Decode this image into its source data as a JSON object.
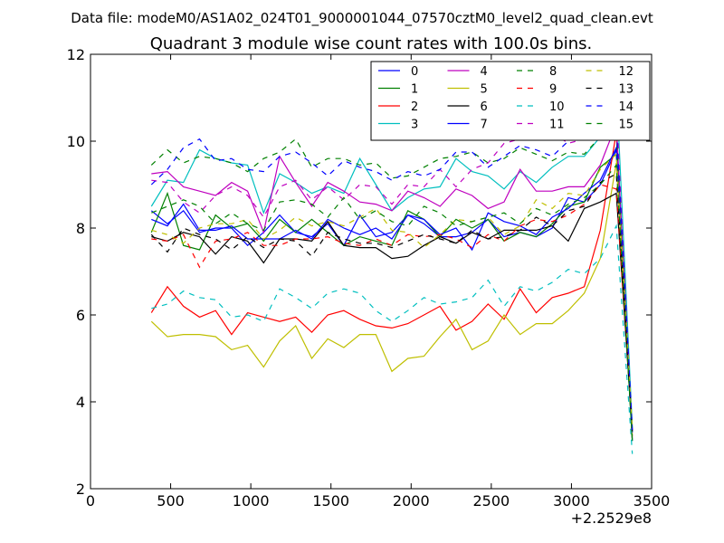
{
  "figure": {
    "suptitle": "Data file: modeM0/AS1A02_024T01_9000001044_07570cztM0_level2_quad_clean.evt",
    "offset_label": "+2.2529e8"
  },
  "chart_data": {
    "type": "line",
    "title": "Quadrant 3 module wise count rates with 100.0s bins.",
    "xlabel": "",
    "ylabel": "",
    "xlim": [
      0,
      3500
    ],
    "ylim": [
      2,
      12
    ],
    "x_offset": 225290000,
    "xticks": [
      0,
      500,
      1000,
      1500,
      2000,
      2500,
      3000,
      3500
    ],
    "yticks": [
      2,
      4,
      6,
      8,
      10,
      12
    ],
    "grid": false,
    "legend_position": "top-right",
    "legend_columns": 4,
    "x": [
      380,
      480,
      580,
      680,
      780,
      880,
      980,
      1080,
      1180,
      1280,
      1380,
      1480,
      1580,
      1680,
      1780,
      1880,
      1980,
      2080,
      2180,
      2280,
      2380,
      2480,
      2580,
      2680,
      2780,
      2880,
      2980,
      3080,
      3180,
      3280,
      3380
    ],
    "series": [
      {
        "name": "0",
        "color": "#0000ff",
        "dash": "solid",
        "values": [
          8.4,
          8.1,
          8.4,
          7.9,
          8.0,
          8.0,
          7.6,
          7.9,
          8.3,
          7.9,
          7.8,
          8.1,
          7.6,
          8.3,
          7.8,
          7.9,
          8.3,
          8.1,
          7.8,
          7.8,
          7.9,
          8.2,
          7.8,
          7.9,
          7.8,
          8.0,
          8.7,
          8.6,
          9.0,
          9.8,
          3.1
        ]
      },
      {
        "name": "1",
        "color": "#008000",
        "dash": "solid",
        "values": [
          7.9,
          8.8,
          7.6,
          7.5,
          8.3,
          8.0,
          8.1,
          7.7,
          8.2,
          7.9,
          8.2,
          7.9,
          7.6,
          7.8,
          7.7,
          7.6,
          8.4,
          8.2,
          7.8,
          8.2,
          8.0,
          8.2,
          7.7,
          7.9,
          7.8,
          8.1,
          8.5,
          8.6,
          9.4,
          9.7,
          3.1
        ]
      },
      {
        "name": "2",
        "color": "#ff0000",
        "dash": "solid",
        "values": [
          6.05,
          6.65,
          6.2,
          5.95,
          6.1,
          5.55,
          6.05,
          5.95,
          5.85,
          5.95,
          5.6,
          6.0,
          6.1,
          5.9,
          5.75,
          5.7,
          5.8,
          6.0,
          6.2,
          5.65,
          5.85,
          6.25,
          5.9,
          6.6,
          6.05,
          6.4,
          6.5,
          6.65,
          7.95,
          10.2,
          3.35
        ]
      },
      {
        "name": "3",
        "color": "#00bfbf",
        "dash": "solid",
        "values": [
          8.5,
          9.1,
          9.05,
          9.8,
          9.6,
          9.5,
          9.45,
          8.35,
          9.25,
          9.05,
          8.8,
          8.95,
          8.8,
          9.6,
          9.0,
          8.4,
          8.7,
          8.9,
          8.95,
          9.6,
          9.3,
          9.2,
          8.9,
          9.3,
          9.05,
          9.4,
          9.65,
          9.65,
          10.1,
          11.3,
          3.4
        ]
      },
      {
        "name": "4",
        "color": "#bf00bf",
        "dash": "solid",
        "values": [
          9.25,
          9.3,
          8.95,
          8.85,
          8.75,
          9.05,
          8.85,
          7.9,
          9.65,
          9.05,
          8.5,
          9.05,
          8.85,
          8.6,
          8.55,
          8.4,
          8.85,
          8.7,
          8.5,
          8.9,
          8.75,
          8.45,
          8.6,
          9.35,
          8.85,
          8.85,
          8.95,
          8.95,
          9.45,
          10.4,
          3.2
        ]
      },
      {
        "name": "5",
        "color": "#bfbf00",
        "dash": "solid",
        "values": [
          5.85,
          5.5,
          5.55,
          5.55,
          5.5,
          5.2,
          5.3,
          4.8,
          5.4,
          5.75,
          5.0,
          5.45,
          5.25,
          5.55,
          5.55,
          4.7,
          5.0,
          5.05,
          5.5,
          5.9,
          5.2,
          5.4,
          6.0,
          5.55,
          5.8,
          5.8,
          6.1,
          6.5,
          7.3,
          9.5,
          3.2
        ]
      },
      {
        "name": "6",
        "color": "#000000",
        "dash": "solid",
        "values": [
          7.8,
          7.7,
          7.9,
          7.8,
          7.4,
          7.8,
          7.7,
          7.2,
          7.75,
          7.75,
          7.7,
          8.15,
          7.6,
          7.55,
          7.55,
          7.3,
          7.35,
          7.6,
          7.8,
          7.65,
          7.9,
          7.75,
          7.95,
          7.95,
          7.95,
          8.05,
          7.7,
          8.45,
          8.6,
          8.8,
          3.3
        ]
      },
      {
        "name": "7",
        "color": "#0000ff",
        "dash": "solid",
        "values": [
          8.2,
          8.05,
          8.55,
          7.95,
          7.95,
          8.05,
          7.75,
          7.75,
          7.75,
          7.95,
          7.75,
          8.2,
          8.0,
          7.85,
          8.0,
          7.75,
          8.3,
          8.2,
          7.85,
          8.0,
          7.5,
          8.35,
          8.15,
          8.05,
          7.85,
          8.25,
          8.45,
          8.8,
          9.1,
          9.85,
          3.3
        ]
      },
      {
        "name": "8",
        "color": "#008000",
        "dash": "dashed",
        "values": [
          9.45,
          9.8,
          9.5,
          9.65,
          9.6,
          9.5,
          9.3,
          9.6,
          9.75,
          10.05,
          9.4,
          9.6,
          9.6,
          9.45,
          9.5,
          9.15,
          9.2,
          9.4,
          9.6,
          9.65,
          9.75,
          9.5,
          9.6,
          9.85,
          9.7,
          9.55,
          9.75,
          9.7,
          10.1,
          10.2,
          3.2
        ]
      },
      {
        "name": "9",
        "color": "#ff0000",
        "dash": "dashed",
        "values": [
          7.75,
          7.7,
          7.85,
          7.1,
          7.7,
          7.75,
          7.9,
          7.6,
          7.6,
          7.75,
          7.75,
          7.8,
          7.65,
          7.6,
          7.75,
          7.6,
          7.85,
          7.8,
          7.85,
          7.75,
          7.55,
          7.85,
          7.7,
          8.05,
          8.2,
          8.15,
          8.3,
          8.55,
          9.0,
          8.9,
          3.3
        ]
      },
      {
        "name": "10",
        "color": "#00bfbf",
        "dash": "dashed",
        "values": [
          6.15,
          6.25,
          6.55,
          6.4,
          6.35,
          5.95,
          6.0,
          5.85,
          6.6,
          6.4,
          6.15,
          6.5,
          6.6,
          6.5,
          6.1,
          5.85,
          6.1,
          6.4,
          6.25,
          6.3,
          6.4,
          6.8,
          6.2,
          6.65,
          6.55,
          6.75,
          7.05,
          6.95,
          7.3,
          8.05,
          2.8
        ]
      },
      {
        "name": "11",
        "color": "#bf00bf",
        "dash": "dashed",
        "values": [
          9.1,
          9.05,
          8.6,
          8.35,
          8.75,
          8.95,
          8.75,
          8.25,
          8.95,
          9.1,
          8.65,
          8.95,
          8.65,
          9.0,
          8.95,
          8.55,
          9.0,
          8.95,
          9.35,
          8.95,
          9.35,
          9.5,
          9.95,
          10.05,
          10.1,
          10.2,
          9.95,
          10.05,
          10.3,
          10.8,
          3.25
        ]
      },
      {
        "name": "12",
        "color": "#bfbf00",
        "dash": "dashed",
        "values": [
          7.95,
          7.85,
          7.65,
          8.0,
          8.1,
          8.1,
          8.2,
          7.75,
          7.95,
          8.25,
          8.05,
          8.15,
          8.05,
          8.25,
          8.45,
          7.95,
          7.9,
          7.55,
          7.85,
          8.2,
          8.15,
          8.25,
          7.85,
          8.05,
          8.65,
          8.45,
          8.8,
          8.75,
          9.35,
          9.7,
          3.4
        ]
      },
      {
        "name": "13",
        "color": "#000000",
        "dash": "dashed",
        "values": [
          7.85,
          7.45,
          8.0,
          7.85,
          7.75,
          7.5,
          7.8,
          7.55,
          7.75,
          7.7,
          7.35,
          7.9,
          7.75,
          7.65,
          7.65,
          7.55,
          7.7,
          7.85,
          7.75,
          7.65,
          7.95,
          7.75,
          7.8,
          7.95,
          8.25,
          8.05,
          8.4,
          8.5,
          9.05,
          9.25,
          3.3
        ]
      },
      {
        "name": "14",
        "color": "#0000ff",
        "dash": "dashed",
        "values": [
          9.0,
          9.35,
          9.85,
          10.05,
          9.55,
          9.6,
          9.35,
          9.3,
          9.65,
          9.75,
          9.5,
          9.2,
          9.55,
          9.4,
          9.3,
          9.1,
          9.3,
          9.2,
          9.35,
          9.75,
          9.75,
          9.4,
          9.65,
          9.9,
          9.8,
          9.65,
          10.0,
          10.2,
          10.35,
          10.35,
          3.35
        ]
      },
      {
        "name": "15",
        "color": "#008000",
        "dash": "dashed",
        "values": [
          8.35,
          8.5,
          8.65,
          8.5,
          8.1,
          8.35,
          8.1,
          7.95,
          8.6,
          8.65,
          8.55,
          8.25,
          8.7,
          8.2,
          8.4,
          8.15,
          8.05,
          8.5,
          8.35,
          8.05,
          8.15,
          8.25,
          8.35,
          8.1,
          8.45,
          8.3,
          8.55,
          8.7,
          9.0,
          9.45,
          3.1
        ]
      }
    ]
  }
}
